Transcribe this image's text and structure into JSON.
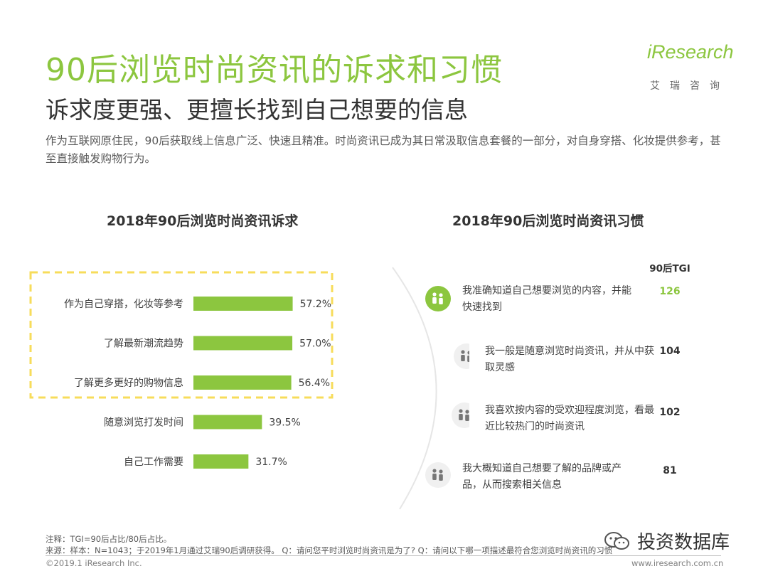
{
  "header": {
    "title": "90后浏览时尚资讯的诉求和习惯",
    "subtitle": "诉求度更强、更擅长找到自己想要的信息",
    "intro": "作为互联网原住民，90后获取线上信息广泛、快速且精准。时尚资讯已成为其日常汲取信息套餐的一部分，对自身穿搭、化妆提供参考，甚至直接触发购物行为。"
  },
  "logo": {
    "word": "iResearch",
    "sub": "艾瑞咨询"
  },
  "left_section": {
    "title": "2018年90后浏览时尚资讯诉求"
  },
  "right_section": {
    "title": "2018年90后浏览时尚资讯习惯",
    "tgi_header": "90后TGI"
  },
  "colors": {
    "accent": "#8cc63f",
    "dash": "#f7dc5b",
    "arc": "#e6e6e6",
    "icon_bg": "#f0f0f0"
  },
  "chart_data": [
    {
      "type": "bar",
      "orientation": "horizontal",
      "title": "2018年90后浏览时尚资讯诉求",
      "categories": [
        "作为自己穿搭，化妆等参考",
        "了解最新潮流趋势",
        "了解更多更好的购物信息",
        "随意浏览打发时间",
        "自己工作需要"
      ],
      "values": [
        57.2,
        57.0,
        56.4,
        39.5,
        31.7
      ],
      "value_labels": [
        "57.2%",
        "57.0%",
        "56.4%",
        "39.5%",
        "31.7%"
      ],
      "highlighted_count": 3,
      "xlim": [
        0,
        60
      ]
    },
    {
      "type": "table",
      "title": "2018年90后浏览时尚资讯习惯",
      "column": "90后TGI",
      "rows": [
        {
          "text": "我准确知道自己想要浏览的内容，并能快速找到",
          "tgi": "126",
          "highlight": true,
          "icon": "people-icon"
        },
        {
          "text": "我一般是随意浏览时尚资讯，并从中获取灵感",
          "tgi": "104",
          "highlight": false,
          "icon": "people-icon"
        },
        {
          "text": "我喜欢按内容的受欢迎程度浏览，看最近比较热门的时尚资讯",
          "tgi": "102",
          "highlight": false,
          "icon": "people-icon"
        },
        {
          "text": "我大概知道自己想要了解的品牌或产品，从而搜索相关信息",
          "tgi": "81",
          "highlight": false,
          "icon": "people-icon"
        }
      ]
    }
  ],
  "footer": {
    "note": "注释：TGI=90后占比/80后占比。",
    "source": "来源：样本：N=1043；于2019年1月通过艾瑞90后调研获得。 Q：请问您平时浏览时尚资讯是为了? Q：请问以下哪一项描述最符合您浏览时尚资讯的习惯",
    "copyright": "©2019.1 iResearch Inc.",
    "url": "www.iresearch.com.cn"
  },
  "watermark": {
    "text": "投资数据库",
    "icon": "wechat-icon"
  }
}
